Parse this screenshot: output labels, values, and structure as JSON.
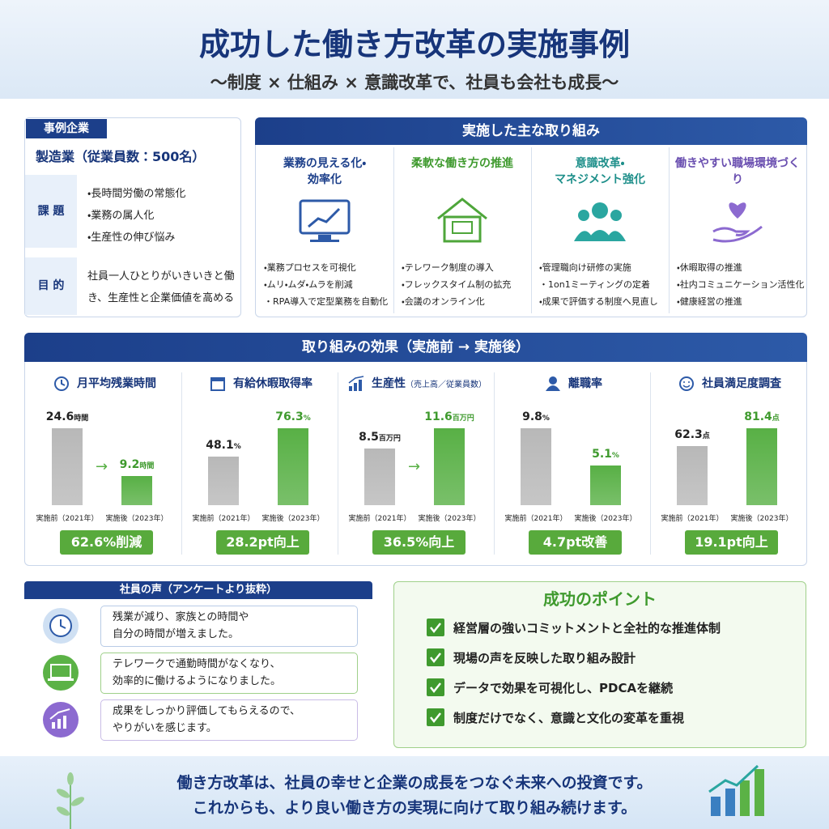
{
  "header": {
    "title": "成功した働き方改革の実施事例",
    "subtitle": "〜制度 × 仕組み × 意識改革で、社員も会社も成長〜"
  },
  "company": {
    "tag": "事例企業",
    "name": "製造業（従業員数：500名）",
    "issues_label": "課 題",
    "issues": [
      "・長時間労働の常態化",
      "・業務の属人化",
      "・生産性の伸び悩み"
    ],
    "purpose_label": "目 的",
    "purpose": "社員一人ひとりがいきいきと働き、生産性と企業価値を高める"
  },
  "initiatives": {
    "title": "実施した主な取り組み",
    "items": [
      {
        "title": [
          "業務の見える化・",
          "効率化"
        ],
        "points": [
          "・業務プロセスを可視化",
          "・ムリ・ムダ・ムラを削減",
          "・RPA導入で定型業務を自動化"
        ]
      },
      {
        "title": [
          "柔軟な働き方の推進"
        ],
        "points": [
          "・テレワーク制度の導入",
          "・フレックスタイム制の拡充",
          "・会議のオンライン化"
        ]
      },
      {
        "title": [
          "意識改革・",
          "マネジメント強化"
        ],
        "points": [
          "・管理職向け研修の実施",
          "・1on1ミーティングの定着",
          "・成果で評価する制度へ見直し"
        ]
      },
      {
        "title": [
          "働きやすい職場環境づくり"
        ],
        "points": [
          "・休暇取得の推進",
          "・社内コミュニケーション活性化",
          "・健康経営の推進"
        ]
      }
    ]
  },
  "effects": {
    "title": "取り組みの効果（実施前 → 実施後）",
    "items": [
      {
        "title": "月平均残業時間",
        "before": 24.6,
        "before_unit": "時間",
        "after": 9.2,
        "after_unit": "時間",
        "before_label": "実施前（2021年）",
        "after_label": "実施後（2023年）",
        "result": "62.6%削減"
      },
      {
        "title": "有給休暇取得率",
        "before": 48.1,
        "before_unit": "%",
        "after": 76.3,
        "after_unit": "%",
        "before_label": "実施前（2021年）",
        "after_label": "実施後（2023年）",
        "result": "28.2pt向上"
      },
      {
        "title": "生産性",
        "title_note": "（売上高／従業員数）",
        "before": 8.5,
        "before_unit": "百万円",
        "after": 11.6,
        "after_unit": "百万円",
        "before_label": "実施前（2021年）",
        "after_label": "実施後（2023年）",
        "result": "36.5%向上"
      },
      {
        "title": "離職率",
        "before": 9.8,
        "before_unit": "%",
        "after": 5.1,
        "after_unit": "%",
        "before_label": "実施前（2021年）",
        "after_label": "実施後（2023年）",
        "result": "4.7pt改善"
      },
      {
        "title": "社員満足度調査",
        "before": 62.3,
        "before_unit": "点",
        "after": 81.4,
        "after_unit": "点",
        "before_label": "実施前（2021年）",
        "after_label": "実施後（2023年）",
        "result": "19.1pt向上"
      }
    ]
  },
  "voices": {
    "title": "社員の声（アンケートより抜粋）",
    "items": [
      [
        "残業が減り、家族との時間や",
        "自分の時間が増えました。"
      ],
      [
        "テレワークで通勤時間がなくなり、",
        "効率的に働けるようになりました。"
      ],
      [
        "成果をしっかり評価してもらえるので、",
        "やりがいを感じます。"
      ]
    ]
  },
  "points": {
    "title": "成功のポイント",
    "items": [
      "経営層の強いコミットメントと全社的な推進体制",
      "現場の声を反映した取り組み設計",
      "データで効果を可視化し、PDCAを継続",
      "制度だけでなく、意識と文化の変革を重視"
    ]
  },
  "footer": {
    "lines": [
      "働き方改革は、社員の幸せと企業の成長をつなぐ未来への投資です。",
      "これからも、より良い働き方の実現に向けて取り組み続けます。"
    ]
  }
}
